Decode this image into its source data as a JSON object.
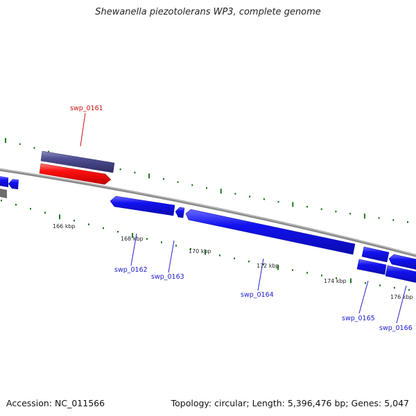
{
  "title": "Shewanella piezotolerans WP3, complete genome",
  "footer": {
    "accession": "Accession: NC_011566",
    "summary": "Topology: circular; Length: 5,396,476 bp; Genes: 5,047"
  },
  "colors": {
    "backbone": "#8a8a8a",
    "tick": "#1a7a1a",
    "gene_blue": "#1010ee",
    "gene_red": "#ff1010",
    "gene_purple": "#4b4b8f",
    "label_blue": "#2020cc",
    "label_red": "#cc1111"
  },
  "scale_labels": [
    "166 kbp",
    "168 kbp",
    "170 kbp",
    "172 kbp",
    "174 kbp",
    "176 kbp"
  ],
  "gene_labels": [
    "swp_0161",
    "swp_0162",
    "swp_0163",
    "swp_0164",
    "swp_0165",
    "swp_0166"
  ]
}
